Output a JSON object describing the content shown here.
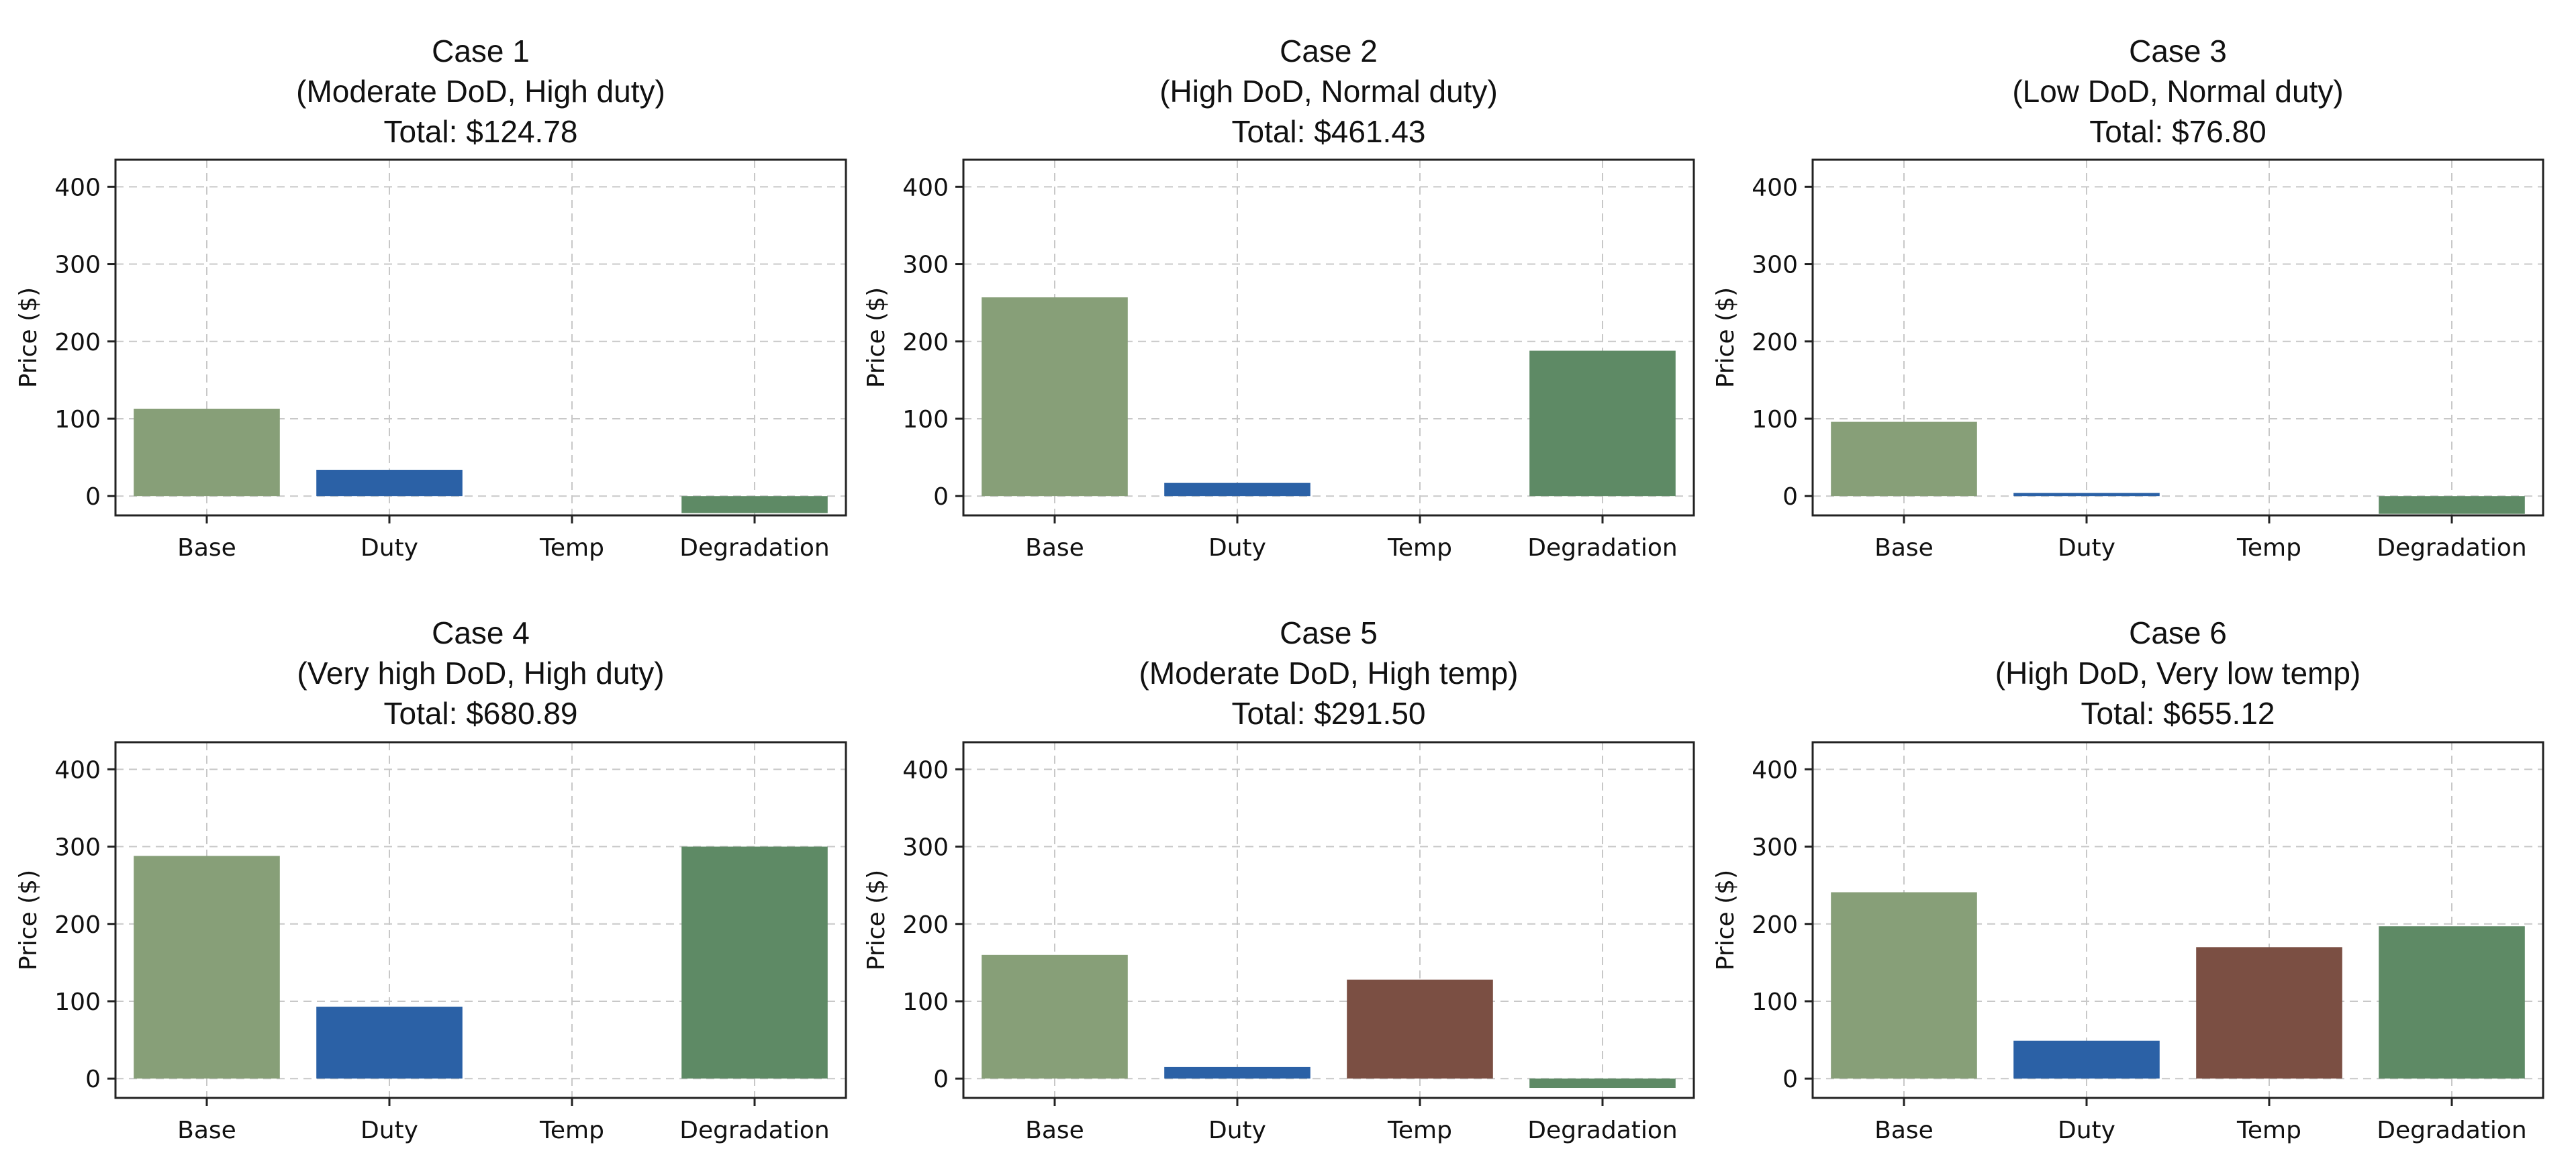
{
  "chart_data": [
    {
      "type": "bar",
      "title": [
        "Case 1",
        "(Moderate DoD, High duty)",
        "Total: $124.78"
      ],
      "categories": [
        "Base",
        "Duty",
        "Temp",
        "Degradation"
      ],
      "values": [
        113,
        34,
        0,
        -22
      ],
      "ylabel": "Price ($)",
      "ylim": [
        -25,
        435
      ],
      "yticks": [
        0,
        100,
        200,
        300,
        400
      ],
      "grid": true
    },
    {
      "type": "bar",
      "title": [
        "Case 2",
        "(High DoD, Normal duty)",
        "Total: $461.43"
      ],
      "categories": [
        "Base",
        "Duty",
        "Temp",
        "Degradation"
      ],
      "values": [
        257,
        17,
        0,
        188
      ],
      "ylabel": "Price ($)",
      "ylim": [
        -25,
        435
      ],
      "yticks": [
        0,
        100,
        200,
        300,
        400
      ],
      "grid": true
    },
    {
      "type": "bar",
      "title": [
        "Case 3",
        "(Low DoD, Normal duty)",
        "Total: $76.80"
      ],
      "categories": [
        "Base",
        "Duty",
        "Temp",
        "Degradation"
      ],
      "values": [
        96,
        4,
        0,
        -23
      ],
      "ylabel": "Price ($)",
      "ylim": [
        -25,
        435
      ],
      "yticks": [
        0,
        100,
        200,
        300,
        400
      ],
      "grid": true
    },
    {
      "type": "bar",
      "title": [
        "Case 4",
        "(Very high DoD, High duty)",
        "Total: $680.89"
      ],
      "categories": [
        "Base",
        "Duty",
        "Temp",
        "Degradation"
      ],
      "values": [
        288,
        93,
        0,
        300
      ],
      "ylabel": "Price ($)",
      "ylim": [
        -25,
        435
      ],
      "yticks": [
        0,
        100,
        200,
        300,
        400
      ],
      "grid": true
    },
    {
      "type": "bar",
      "title": [
        "Case 5",
        "(Moderate DoD, High temp)",
        "Total: $291.50"
      ],
      "categories": [
        "Base",
        "Duty",
        "Temp",
        "Degradation"
      ],
      "values": [
        160,
        15,
        128,
        -12
      ],
      "ylabel": "Price ($)",
      "ylim": [
        -25,
        435
      ],
      "yticks": [
        0,
        100,
        200,
        300,
        400
      ],
      "grid": true
    },
    {
      "type": "bar",
      "title": [
        "Case 6",
        "(High DoD, Very low temp)",
        "Total: $655.12"
      ],
      "categories": [
        "Base",
        "Duty",
        "Temp",
        "Degradation"
      ],
      "values": [
        241,
        49,
        170,
        197
      ],
      "ylabel": "Price ($)",
      "ylim": [
        -25,
        435
      ],
      "yticks": [
        0,
        100,
        200,
        300,
        400
      ],
      "grid": true
    }
  ],
  "colors": {
    "Base": "#879f78",
    "Duty": "#2b61a6",
    "Temp": "#7b4f43",
    "Degradation": "#5e8a65"
  }
}
